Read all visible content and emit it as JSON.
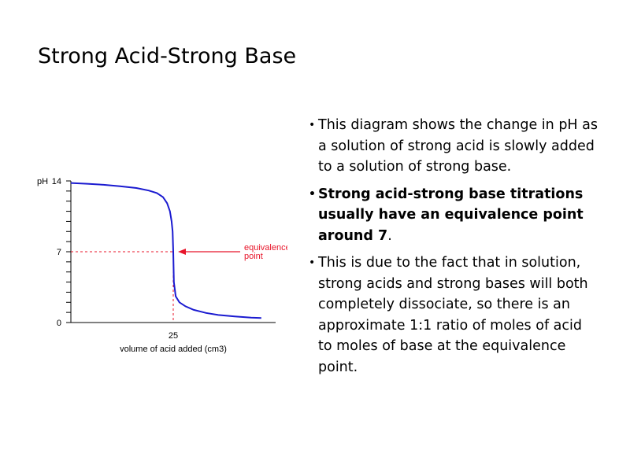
{
  "title": "Strong Acid-Strong Base",
  "bullets": [
    {
      "text": "This diagram shows the change in pH as a solution of strong acid is slowly added to a solution of strong base.",
      "bold": false
    },
    {
      "text": "Strong acid-strong base titrations usually have an equivalence point around 7",
      "tail": ".",
      "bold": true
    },
    {
      "text": "This is due to the fact that in solution, strong acids and strong bases will both completely dissociate, so there is an approximate 1:1 ratio of moles of acid to moles of base at the equivalence point.",
      "bold": false
    }
  ],
  "chart_data": {
    "type": "line",
    "ylabel": "pH",
    "xlabel": "volume of acid added (cm3)",
    "y_ticks": [
      "0",
      "7",
      "14"
    ],
    "x_ticks": [
      "25"
    ],
    "ylim": [
      0,
      14
    ],
    "xlim": [
      0,
      50
    ],
    "annotation": {
      "lines": [
        "equivalence",
        "point"
      ],
      "color": "#e8152a"
    },
    "equivalence_point": {
      "x": 25,
      "y": 7
    },
    "series": [
      {
        "color": "#1a1ad0",
        "points": [
          [
            0,
            13.8
          ],
          [
            4,
            13.72
          ],
          [
            8,
            13.62
          ],
          [
            12,
            13.48
          ],
          [
            16,
            13.3
          ],
          [
            19,
            13.05
          ],
          [
            21,
            12.8
          ],
          [
            22.5,
            12.4
          ],
          [
            23.5,
            11.8
          ],
          [
            24.2,
            11.0
          ],
          [
            24.6,
            10.0
          ],
          [
            24.85,
            9.0
          ],
          [
            25,
            7.0
          ],
          [
            25.15,
            4.0
          ],
          [
            25.6,
            2.6
          ],
          [
            26.5,
            2.0
          ],
          [
            28,
            1.6
          ],
          [
            30,
            1.25
          ],
          [
            33,
            0.95
          ],
          [
            36,
            0.75
          ],
          [
            40,
            0.6
          ],
          [
            44,
            0.48
          ],
          [
            46.5,
            0.45
          ]
        ]
      }
    ]
  }
}
